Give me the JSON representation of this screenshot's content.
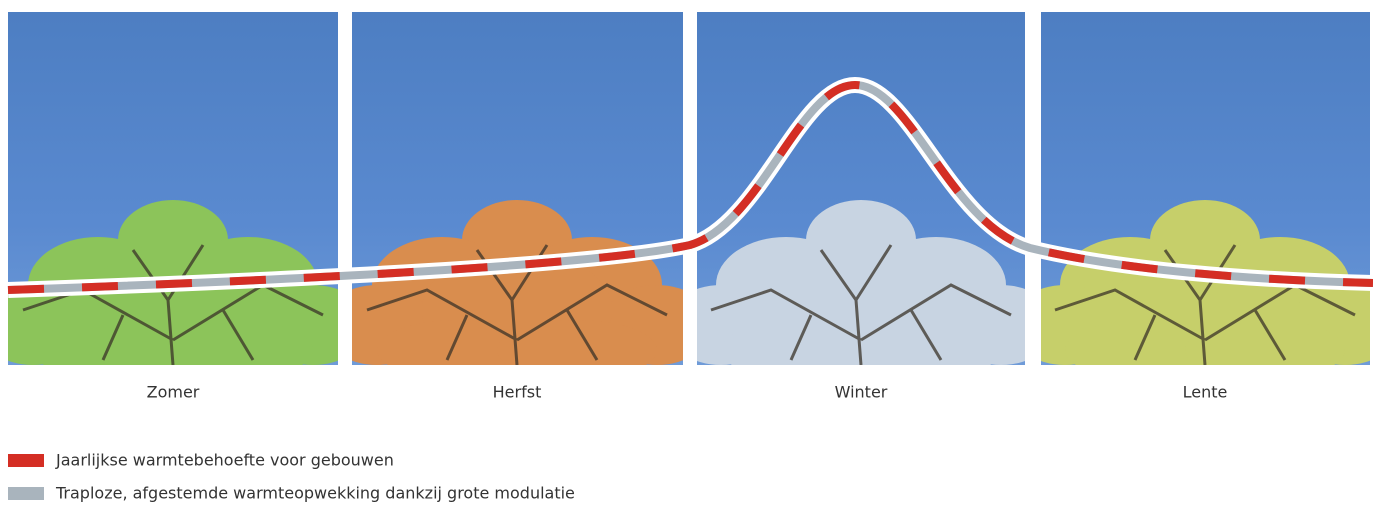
{
  "panels": [
    {
      "label": "Zomer"
    },
    {
      "label": "Herfst"
    },
    {
      "label": "Winter"
    },
    {
      "label": "Lente"
    }
  ],
  "legend": [
    {
      "label": "Jaarlijkse warmtebehoefte voor gebouwen"
    },
    {
      "label": "Traploze, afgestemde warmteopwekking dankzij grote modulatie"
    }
  ]
}
